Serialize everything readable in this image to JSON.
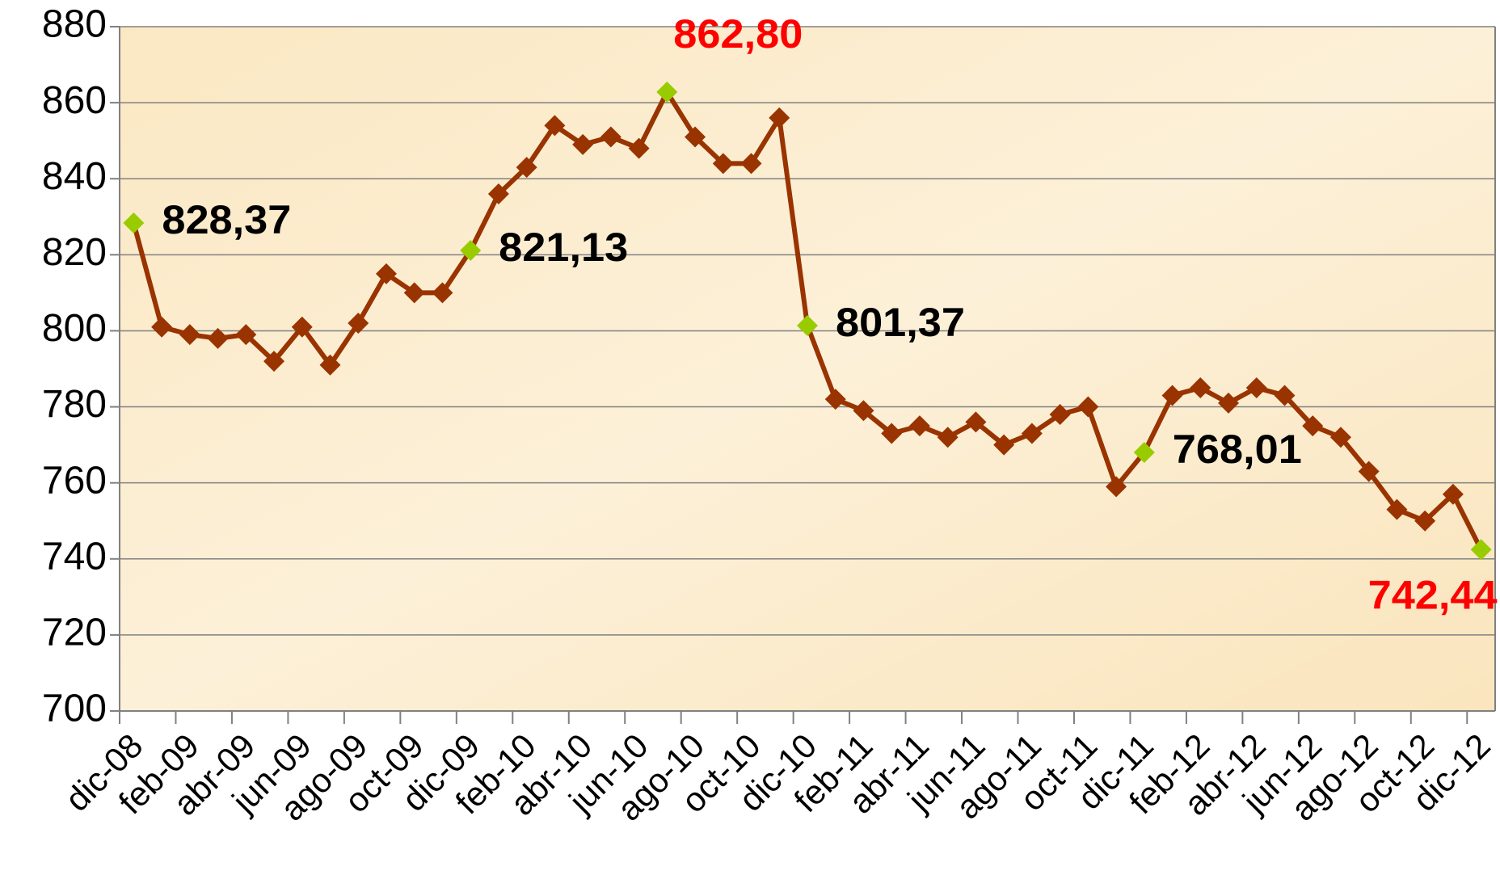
{
  "chart_data": {
    "type": "line",
    "categories": [
      "dic-08",
      null,
      "feb-09",
      null,
      "abr-09",
      null,
      "jun-09",
      null,
      "ago-09",
      null,
      "oct-09",
      null,
      "dic-09",
      null,
      "feb-10",
      null,
      "abr-10",
      null,
      "jun-10",
      null,
      "ago-10",
      null,
      "oct-10",
      null,
      "dic-10",
      null,
      "feb-11",
      null,
      "abr-11",
      null,
      "jun-11",
      null,
      "ago-11",
      null,
      "oct-11",
      null,
      "dic-11",
      null,
      "feb-12",
      null,
      "abr-12",
      null,
      "jun-12",
      null,
      "ago-12",
      null,
      "oct-12",
      null,
      "dic-12"
    ],
    "values": [
      828.37,
      801,
      799,
      798,
      799,
      792,
      801,
      791,
      802,
      815,
      810,
      810,
      821.13,
      836,
      843,
      854,
      849,
      851,
      848,
      862.8,
      851,
      844,
      844,
      856,
      801.37,
      782,
      779,
      773,
      775,
      772,
      776,
      770,
      773,
      778,
      780,
      759,
      768.01,
      783,
      785,
      781,
      785,
      783,
      775,
      772,
      763,
      753,
      750,
      757,
      742.44
    ],
    "value_labels": [
      "828,37",
      null,
      null,
      null,
      null,
      null,
      null,
      null,
      null,
      null,
      null,
      null,
      "821,13",
      null,
      null,
      null,
      null,
      null,
      null,
      "862,80",
      null,
      null,
      null,
      null,
      "801,37",
      null,
      null,
      null,
      null,
      null,
      null,
      null,
      null,
      null,
      null,
      null,
      "768,01",
      null,
      null,
      null,
      null,
      null,
      null,
      null,
      null,
      null,
      null,
      null,
      "742,44"
    ],
    "label_colors": [
      "#000000",
      null,
      null,
      null,
      null,
      null,
      null,
      null,
      null,
      null,
      null,
      null,
      "#000000",
      null,
      null,
      null,
      null,
      null,
      null,
      "#ff0000",
      null,
      null,
      null,
      null,
      "#000000",
      null,
      null,
      null,
      null,
      null,
      null,
      null,
      null,
      null,
      null,
      null,
      "#000000",
      null,
      null,
      null,
      null,
      null,
      null,
      null,
      null,
      null,
      null,
      null,
      "#ff0000"
    ],
    "color": "#993300",
    "highlight_color": "#99cc00",
    "ylim": [
      700,
      880
    ],
    "yticks": [
      700,
      720,
      740,
      760,
      780,
      800,
      820,
      840,
      860,
      880
    ],
    "grid": true
  }
}
